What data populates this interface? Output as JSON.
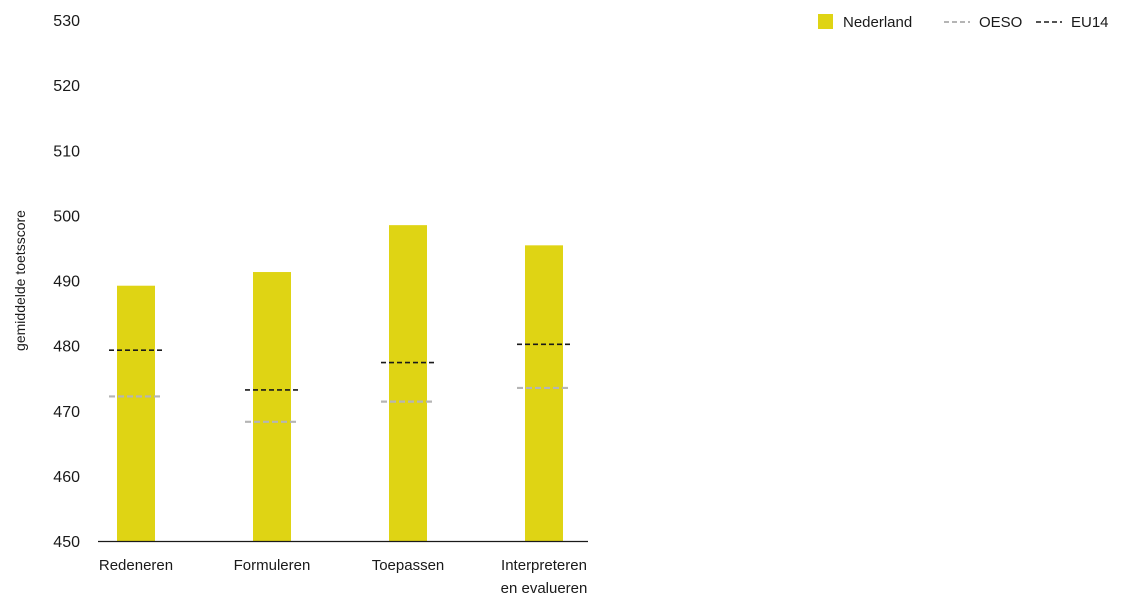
{
  "chart_data": {
    "type": "bar",
    "title": "",
    "xlabel": "",
    "ylabel": "gemiddelde toetsscore",
    "ylim": [
      450,
      530
    ],
    "yticks": [
      450,
      460,
      470,
      480,
      490,
      500,
      510,
      520,
      530
    ],
    "categories": [
      [
        "Redeneren"
      ],
      [
        "Formuleren"
      ],
      [
        "Toepassen"
      ],
      [
        "Interpreteren",
        "en evalueren"
      ]
    ],
    "series": [
      {
        "name": "Nederland",
        "kind": "bar",
        "color": "#dfd414",
        "values": [
          489.2,
          491.3,
          498.5,
          495.4
        ]
      },
      {
        "name": "OESO",
        "kind": "dashed-line",
        "color": "#b5b5b5",
        "values": [
          472.2,
          468.3,
          471.4,
          473.5
        ]
      },
      {
        "name": "EU14",
        "kind": "dashed-line",
        "color": "#1a1a1a",
        "values": [
          479.3,
          473.2,
          477.4,
          480.2
        ]
      }
    ],
    "grid": false,
    "legend_position": "top-right"
  }
}
